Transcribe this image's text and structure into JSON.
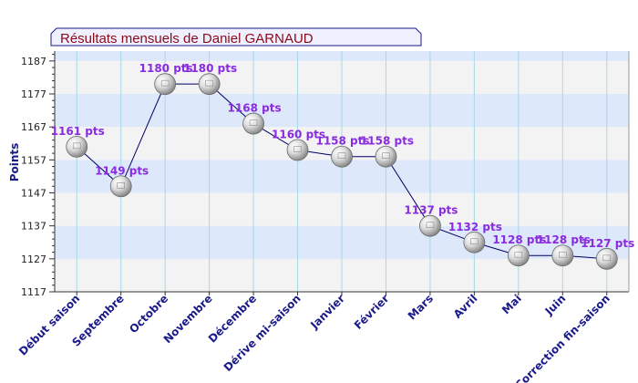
{
  "chart_data": {
    "type": "line",
    "title": "Résultats mensuels de  Daniel GARNAUD",
    "ylabel": "Points",
    "xlabel": "",
    "categories": [
      "Début saison",
      "Septembre",
      "Octobre",
      "Novembre",
      "Décembre",
      "Dérive mi-saison",
      "Janvier",
      "Février",
      "Mars",
      "Avril",
      "Mai",
      "Juin",
      "Correction fin-saison"
    ],
    "values": [
      1161,
      1149,
      1180,
      1180,
      1168,
      1160,
      1158,
      1158,
      1137,
      1132,
      1128,
      1128,
      1127
    ],
    "data_labels": [
      "1161 pts",
      "1149 pts",
      "1180 pts",
      "1180 pts",
      "1168 pts",
      "1160 pts",
      "1158 pts",
      "1158 pts",
      "1137 pts",
      "1132 pts",
      "1128 pts",
      "1128 pts",
      "1127 pts"
    ],
    "yticks": [
      1117,
      1127,
      1137,
      1147,
      1157,
      1167,
      1177,
      1187
    ],
    "ytick_labels": [
      "1117",
      "1127",
      "1137",
      "1147",
      "1157",
      "1167",
      "1177",
      "1187"
    ],
    "ylim": [
      1117,
      1190
    ],
    "grid": true,
    "colors": {
      "title": "#8b0a1a",
      "line": "#000066",
      "label": "#8a2be2",
      "axis_text": "#1a1a8a",
      "band_blue": "#dde8fb",
      "band_gray": "#f3f3f3",
      "vgrid": "#a8d8e8",
      "title_box": "#f0f0ff"
    }
  }
}
